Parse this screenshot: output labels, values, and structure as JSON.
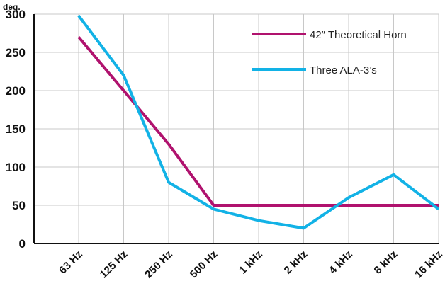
{
  "chart_data": {
    "type": "line",
    "title": "",
    "xlabel": "",
    "ylabel": "deg.",
    "categories": [
      "63 Hz",
      "125 Hz",
      "250 Hz",
      "500 Hz",
      "1 kHz",
      "2 kHz",
      "4 kHz",
      "8 kHz",
      "16 kHz"
    ],
    "ylim": [
      0,
      300
    ],
    "yticks": [
      "0",
      "50",
      "100",
      "150",
      "200",
      "250",
      "300"
    ],
    "grid": true,
    "legend": "top-right",
    "series": [
      {
        "name": "42″ Theoretical Horn",
        "color": "#b0126e",
        "values": [
          270,
          200,
          130,
          50,
          50,
          50,
          50,
          50,
          50
        ]
      },
      {
        "name": "Three ALA-3’s",
        "color": "#12b2e6",
        "values": [
          298,
          220,
          80,
          45,
          30,
          20,
          60,
          90,
          45
        ]
      }
    ]
  }
}
